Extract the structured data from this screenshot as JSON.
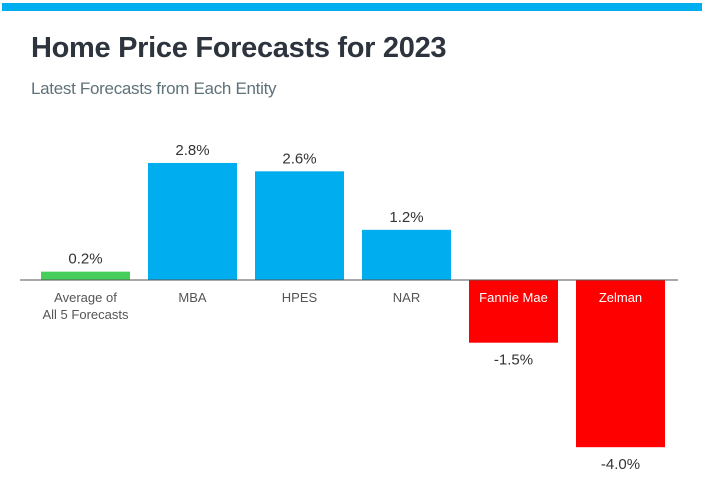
{
  "chart_data": {
    "type": "bar",
    "title": "Home Price Forecasts for 2023",
    "subtitle": "Latest Forecasts from Each Entity",
    "categories": [
      "Average of\nAll 5 Forecasts",
      "MBA",
      "HPES",
      "NAR",
      "Fannie Mae",
      "Zelman"
    ],
    "values": [
      0.2,
      2.8,
      2.6,
      1.2,
      -1.5,
      -4.0
    ],
    "data_labels": [
      "0.2%",
      "2.8%",
      "2.6%",
      "1.2%",
      "-1.5%",
      "-4.0%"
    ],
    "colors": [
      "#45cf5a",
      "#00aeef",
      "#00aeef",
      "#00aeef",
      "#ff0000",
      "#ff0000"
    ],
    "xlabel": "",
    "ylabel": "",
    "ylim": [
      -4.0,
      2.8
    ],
    "grid": false,
    "legend": "none"
  },
  "accent": "#00aeef"
}
